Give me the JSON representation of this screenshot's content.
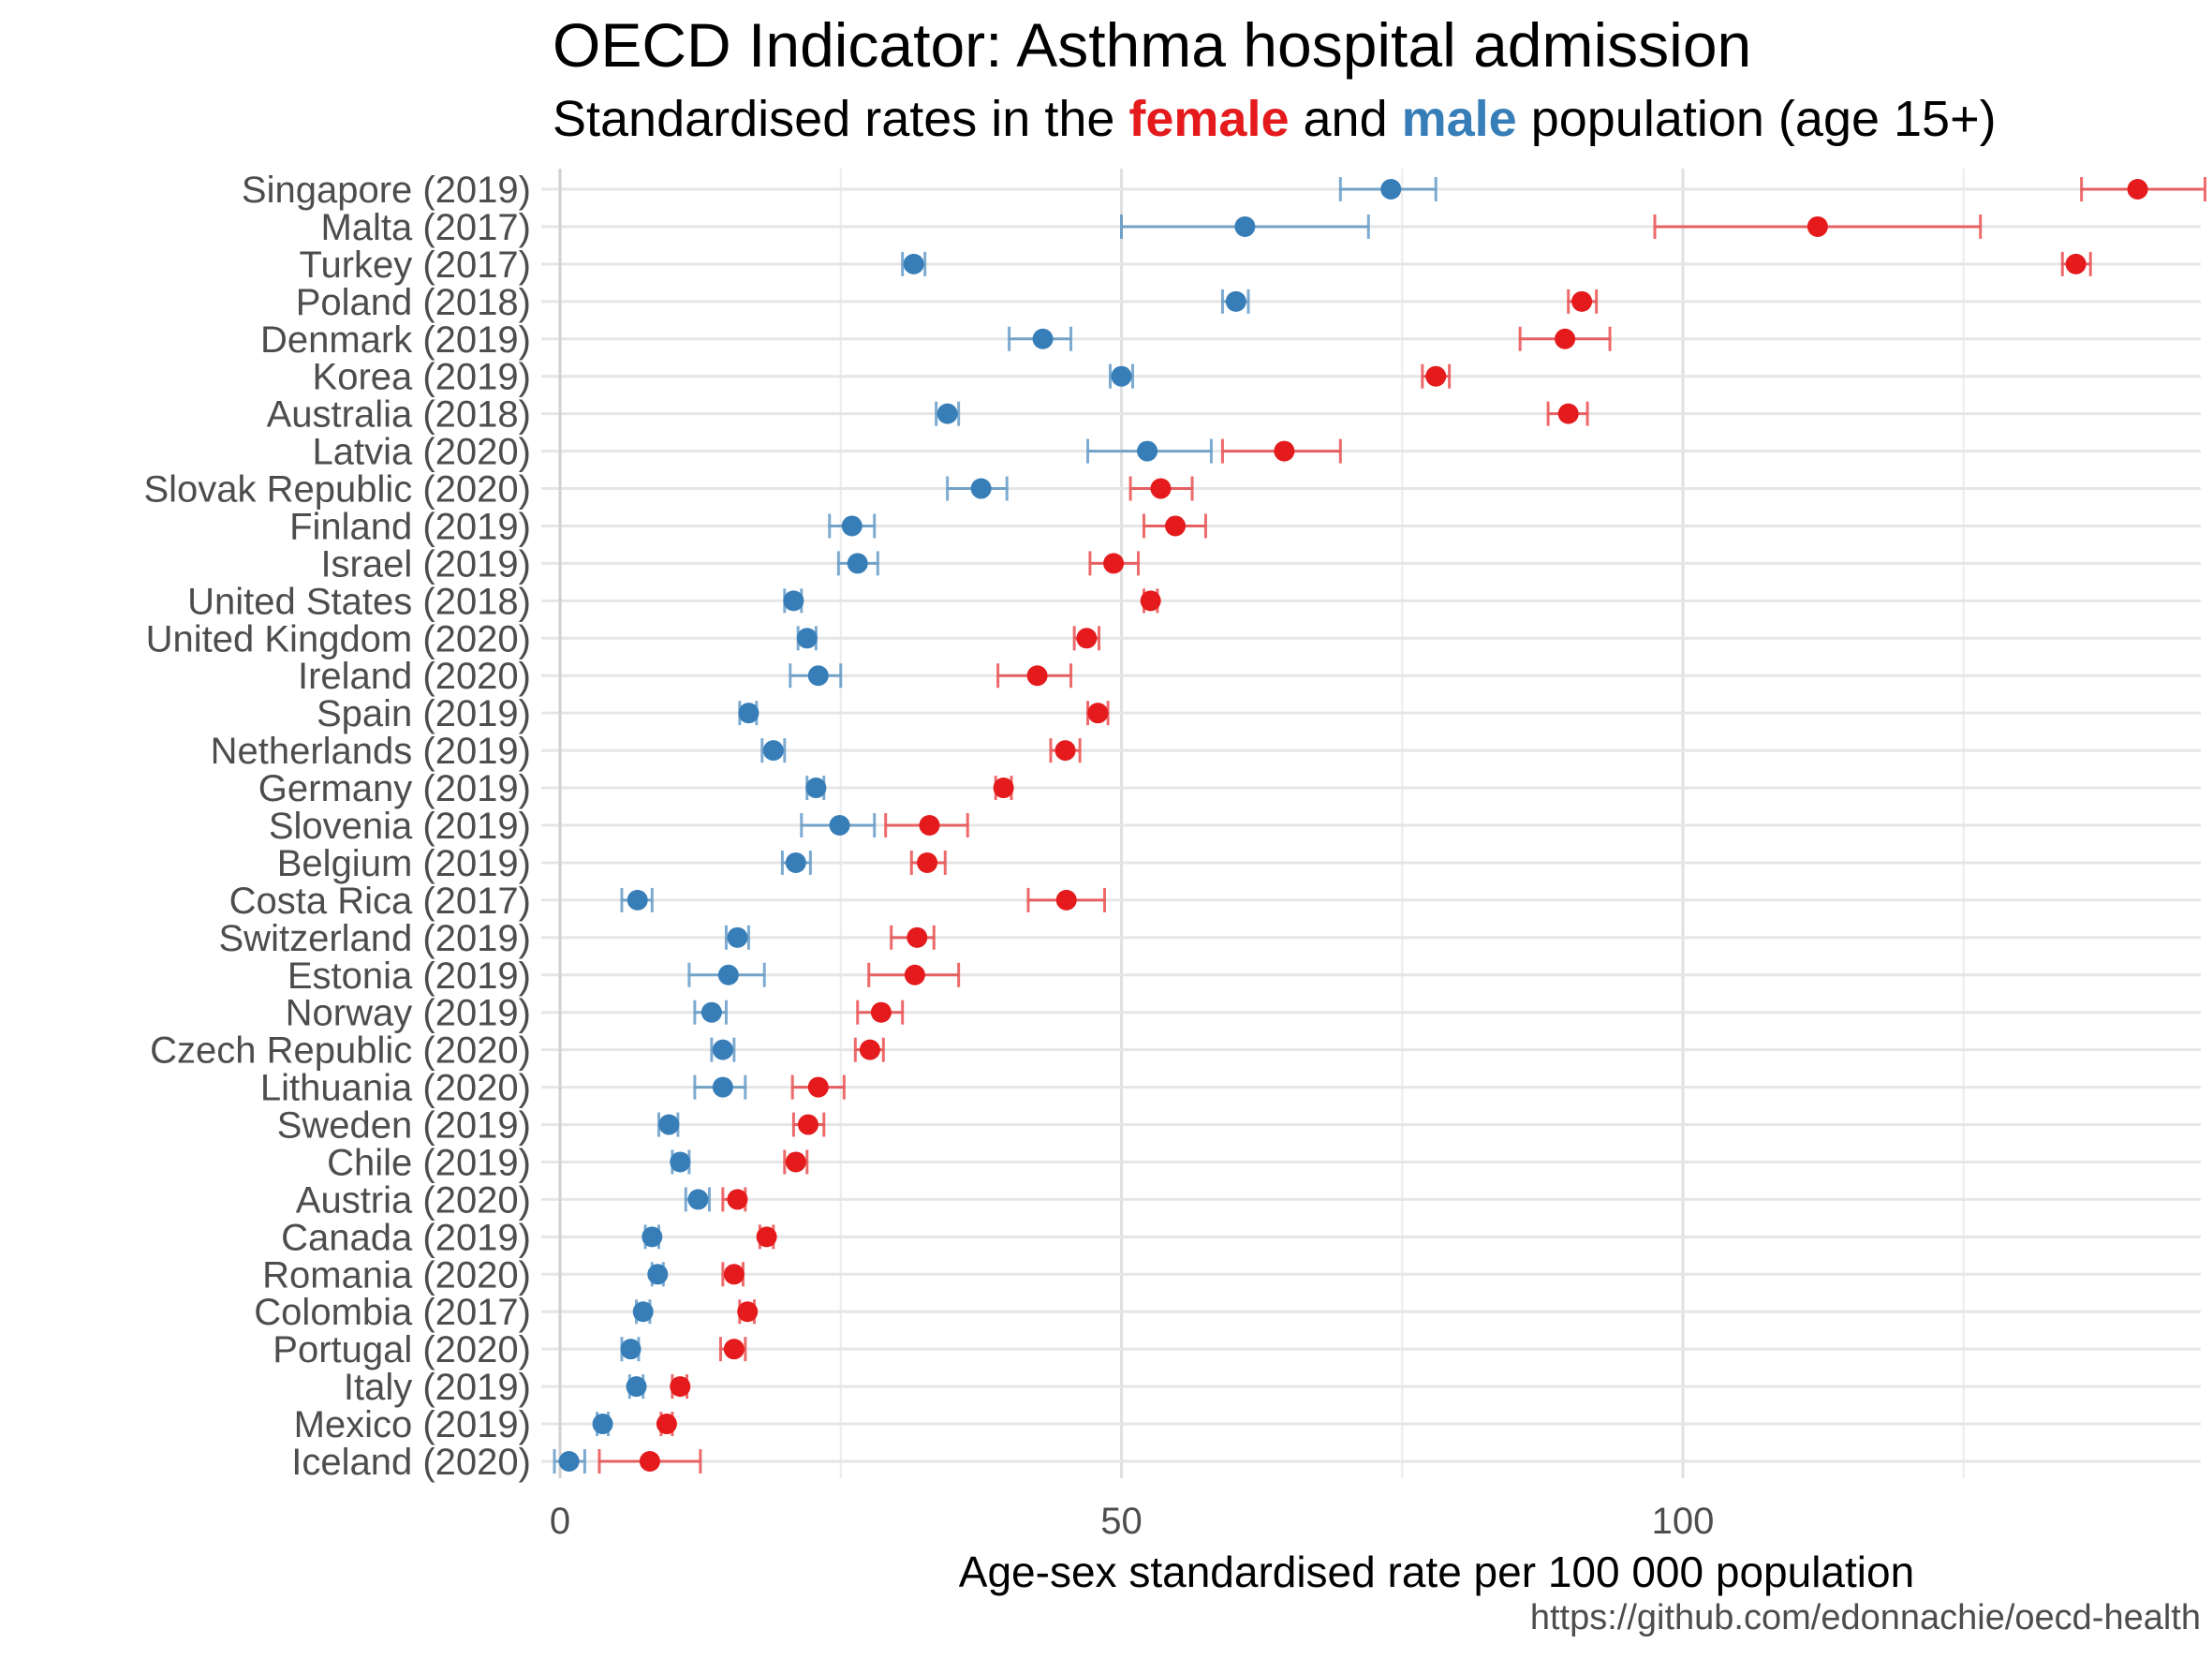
{
  "chart_data": {
    "type": "scatter",
    "title": "OECD Indicator: Asthma hospital admission",
    "subtitle": {
      "prefix": "Standardised rates in the ",
      "female_word": "female",
      "middle": " and ",
      "male_word": "male",
      "suffix": " population (age 15+)"
    },
    "xlabel": "Age-sex standardised rate per 100 000 population",
    "ylabel": "",
    "source": "https://github.com/edonnachie/oecd-health",
    "xlim": [
      -1,
      146.5
    ],
    "xticks": [
      0,
      50,
      100
    ],
    "grid": true,
    "colors": {
      "female": "#E41A1C",
      "male": "#377EB8"
    },
    "categories": [
      "Singapore (2019)",
      "Malta (2017)",
      "Turkey (2017)",
      "Poland (2018)",
      "Denmark (2019)",
      "Korea (2019)",
      "Australia (2018)",
      "Latvia (2020)",
      "Slovak Republic (2020)",
      "Finland (2019)",
      "Israel (2019)",
      "United States (2018)",
      "United Kingdom (2020)",
      "Ireland (2020)",
      "Spain (2019)",
      "Netherlands (2019)",
      "Germany (2019)",
      "Slovenia (2019)",
      "Belgium (2019)",
      "Costa Rica (2017)",
      "Switzerland (2019)",
      "Estonia (2019)",
      "Norway (2019)",
      "Czech Republic (2020)",
      "Lithuania (2020)",
      "Sweden (2019)",
      "Chile (2019)",
      "Austria (2020)",
      "Canada (2019)",
      "Romania (2020)",
      "Colombia (2017)",
      "Portugal (2020)",
      "Italy (2019)",
      "Mexico (2019)",
      "Iceland (2020)"
    ],
    "series": [
      {
        "name": "female",
        "values": [
          140.5,
          112,
          135,
          91,
          89.5,
          78,
          89.8,
          64.5,
          53.5,
          54.8,
          49.3,
          52.6,
          46.9,
          42.5,
          47.9,
          45,
          39.5,
          32.9,
          32.7,
          45.1,
          31.8,
          31.6,
          28.6,
          27.6,
          23,
          22.1,
          21,
          15.8,
          18.4,
          15.5,
          16.7,
          15.5,
          10.7,
          9.5,
          8
        ],
        "lower": [
          135.5,
          97.5,
          133.8,
          89.8,
          85.5,
          76.8,
          88,
          59,
          50.8,
          52,
          47.2,
          52,
          45.8,
          39,
          47,
          43.7,
          38.8,
          29,
          31.3,
          41.7,
          29.5,
          27.5,
          26.5,
          26.3,
          20.7,
          20.8,
          20,
          14.5,
          17.8,
          14.5,
          16,
          14.3,
          10,
          9,
          3.5
        ],
        "upper": [
          146.5,
          126.5,
          136.3,
          92.3,
          93.5,
          79.2,
          91.5,
          69.5,
          56.3,
          57.5,
          51.5,
          53.2,
          48,
          45.5,
          48.8,
          46.3,
          40.2,
          36.3,
          34.3,
          48.5,
          33.3,
          35.5,
          30.5,
          28.8,
          25.3,
          23.5,
          22,
          16.5,
          19,
          16.3,
          17.3,
          16.5,
          11.3,
          10,
          12.5
        ]
      },
      {
        "name": "male",
        "values": [
          74,
          61,
          31.5,
          60.2,
          43,
          50,
          34.5,
          52.3,
          37.5,
          26,
          26.5,
          20.8,
          22,
          23,
          16.8,
          19,
          22.8,
          24.9,
          21,
          6.9,
          15.8,
          15,
          13.5,
          14.5,
          14.5,
          9.7,
          10.7,
          12.3,
          8.2,
          8.7,
          7.4,
          6.3,
          6.8,
          3.8,
          0.8
        ],
        "lower": [
          69.5,
          50,
          30.5,
          59,
          40,
          49,
          33.5,
          47,
          34.5,
          24,
          24.8,
          20,
          21.2,
          20.5,
          16,
          18,
          22,
          21.5,
          19.8,
          5.5,
          14.8,
          11.5,
          12,
          13.5,
          12,
          8.8,
          10,
          11.2,
          7.6,
          8.2,
          6.8,
          5.5,
          6.2,
          3.3,
          -0.5
        ],
        "upper": [
          78,
          72,
          32.5,
          61.3,
          45.5,
          51,
          35.5,
          58,
          39.8,
          28,
          28.3,
          21.5,
          22.8,
          25,
          17.5,
          20,
          23.5,
          28,
          22.3,
          8.2,
          16.8,
          18.2,
          14.8,
          15.5,
          16.5,
          10.5,
          11.5,
          13.3,
          8.8,
          9.2,
          8,
          7,
          7.4,
          4.3,
          2.2
        ]
      }
    ]
  }
}
